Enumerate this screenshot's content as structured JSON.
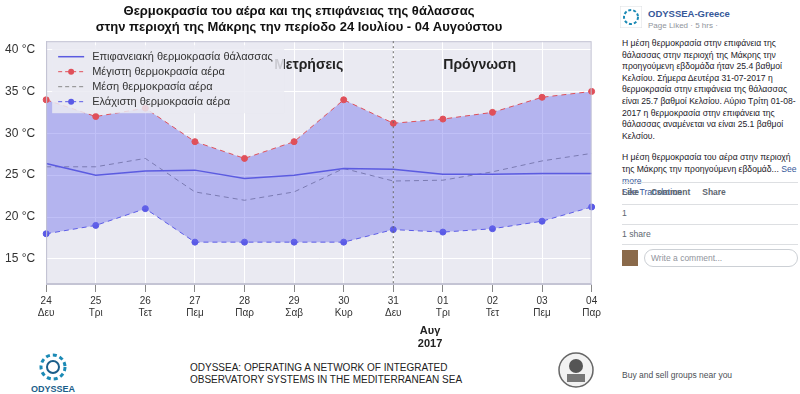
{
  "chart_data": {
    "type": "line",
    "title": [
      "Θερμοκρασία του αέρα και της επιφάνειας της θάλασσας",
      "στην περιοχή της Μάκρης την περίοδο 24 Ιουλίου - 04 Αυγούστου"
    ],
    "categories": [
      "24",
      "25",
      "26",
      "27",
      "28",
      "29",
      "30",
      "31",
      "01",
      "02",
      "03",
      "04"
    ],
    "weekdays": [
      "Δευ",
      "Τρι",
      "Τετ",
      "Πεμ",
      "Παρ",
      "Σαβ",
      "Κυρ",
      "Δευ",
      "Τρι",
      "Τετ",
      "Πεμ",
      "Παρ"
    ],
    "month_label": [
      "Αυγ",
      "2017"
    ],
    "forecast_start": "31",
    "annotations": [
      "Μετρήσεις",
      "Πρόγνωση"
    ],
    "series": [
      {
        "name": "Επιφανειακή θερμοκρασία θάλασσας",
        "color": "#5b5be0",
        "marker": "none",
        "line_style": "solid",
        "values": [
          26.4,
          25.0,
          25.5,
          25.6,
          24.6,
          25.0,
          25.8,
          25.7,
          25.1,
          25.1,
          25.2,
          25.2
        ]
      },
      {
        "name": "Μέγιστη θερμοκρασία αέρα",
        "color": "#e0505a",
        "marker": "circle",
        "line_style": "dashed",
        "values": [
          34.0,
          32.0,
          33.0,
          29.0,
          27.0,
          29.0,
          34.0,
          31.2,
          31.7,
          32.5,
          34.3,
          35.0
        ]
      },
      {
        "name": "Μέση θερμοκρασία αέρα",
        "color": "#888888",
        "marker": "none",
        "line_style": "dashed",
        "values": [
          26.0,
          26.0,
          27.0,
          23.0,
          22.0,
          23.0,
          25.8,
          24.3,
          24.4,
          25.4,
          26.7,
          27.6
        ]
      },
      {
        "name": "Ελάχιστη θερμοκρασία αέρα",
        "color": "#5a5ae6",
        "marker": "circle",
        "line_style": "dashed",
        "values": [
          18.0,
          19.0,
          21.0,
          17.0,
          17.0,
          17.0,
          17.0,
          18.5,
          18.2,
          18.6,
          19.5,
          21.2
        ]
      }
    ],
    "ylim": [
      12,
      41
    ],
    "yticks": [
      {
        "value": 15,
        "label": "15 °C"
      },
      {
        "value": 20,
        "label": "20 °C"
      },
      {
        "value": 25,
        "label": "25 °C"
      },
      {
        "value": 30,
        "label": "30 °C"
      },
      {
        "value": 35,
        "label": "35 °C"
      },
      {
        "value": 40,
        "label": "40 °C"
      }
    ],
    "grid": true,
    "legend": "upper left"
  },
  "footer": {
    "logo": "ODYSSEA",
    "text": [
      "ODYSSEA: OPERATING A NETWORK OF INTEGRATED",
      "OBSERVATORY SYSTEMS IN THE MEDITERRANEAN SEA"
    ]
  },
  "post": {
    "page": "ODYSSEA-Greece",
    "meta": "Page Liked · 5 hrs ·",
    "paragraphs": [
      "Η μέση θερμοκρασία στην επιφάνεια της θάλασσας στην περιοχή της Μάκρης την προηγούμενη εβδομάδα ήταν 25.4 βαθμοί Κελσίου. Σήμερα Δευτέρα 31-07-2017 η θερμοκρασία στην επιφάνεια της θάλασσας είναι 25.7 βαθμοί Κελσίου. Αύριο Τρίτη 01-08-2017 η θερμοκρασία στην επιφάνεια της θάλασσας αναμένεται να είναι 25.1 βαθμοί Κελσίου.",
      "Η μέση θερμοκρασία του αέρα στην περιοχή της Μάκρης την προηγούμενη εβδομάδ..."
    ],
    "see_more": "See more",
    "see_translation": "See Translation",
    "actions": [
      "Like",
      "Comment",
      "Share"
    ],
    "likes": "1",
    "shares": "1 share",
    "comment_placeholder": "Write a comment...",
    "suggestion": "Buy and sell groups near you"
  }
}
